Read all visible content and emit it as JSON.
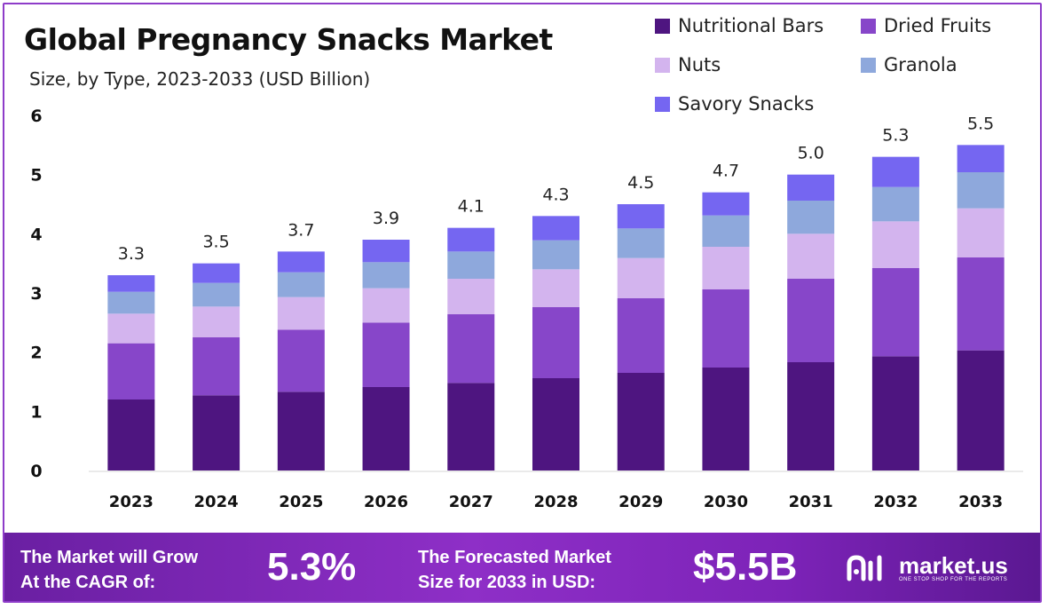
{
  "header": {
    "title": "Global Pregnancy Snacks Market",
    "subtitle": "Size, by Type, 2023-2033 (USD Billion)"
  },
  "chart_data": {
    "type": "bar",
    "stacked": true,
    "title": "Global Pregnancy Snacks Market",
    "subtitle": "Size, by Type, 2023-2033 (USD Billion)",
    "categories": [
      "2023",
      "2024",
      "2025",
      "2026",
      "2027",
      "2028",
      "2029",
      "2030",
      "2031",
      "2032",
      "2033"
    ],
    "series": [
      {
        "name": "Nutritional Bars",
        "color": "#4e1580",
        "values": [
          1.2,
          1.27,
          1.33,
          1.41,
          1.48,
          1.56,
          1.65,
          1.74,
          1.83,
          1.93,
          2.03
        ]
      },
      {
        "name": "Dried Fruits",
        "color": "#8746c9",
        "values": [
          0.95,
          0.98,
          1.05,
          1.09,
          1.16,
          1.2,
          1.26,
          1.32,
          1.41,
          1.49,
          1.57
        ]
      },
      {
        "name": "Nuts",
        "color": "#d3b4ee",
        "values": [
          0.5,
          0.52,
          0.55,
          0.58,
          0.6,
          0.64,
          0.68,
          0.72,
          0.76,
          0.79,
          0.83
        ]
      },
      {
        "name": "Granola",
        "color": "#8ea8dc",
        "values": [
          0.37,
          0.4,
          0.42,
          0.44,
          0.46,
          0.49,
          0.5,
          0.53,
          0.56,
          0.58,
          0.61
        ]
      },
      {
        "name": "Savory Snacks",
        "color": "#7566f1",
        "values": [
          0.28,
          0.33,
          0.35,
          0.38,
          0.4,
          0.41,
          0.41,
          0.39,
          0.44,
          0.51,
          0.46
        ]
      }
    ],
    "totals": [
      "3.3",
      "3.5",
      "3.7",
      "3.9",
      "4.1",
      "4.3",
      "4.5",
      "4.7",
      "5.0",
      "5.3",
      "5.5"
    ],
    "ylim": [
      0,
      6
    ],
    "yticks": [
      "0",
      "1",
      "2",
      "3",
      "4",
      "5",
      "6"
    ],
    "legend_position": "top-right",
    "grid": false
  },
  "footer": {
    "cagr_label_line1": "The Market will Grow",
    "cagr_label_line2": "At the CAGR of:",
    "cagr_value": "5.3%",
    "forecast_label_line1": "The Forecasted Market",
    "forecast_label_line2": "Size for 2033 in USD:",
    "forecast_value": "$5.5B",
    "brand_name": "market.us",
    "brand_tagline": "ONE STOP SHOP FOR THE REPORTS",
    "brand_icon": "market-us-logo-icon"
  }
}
